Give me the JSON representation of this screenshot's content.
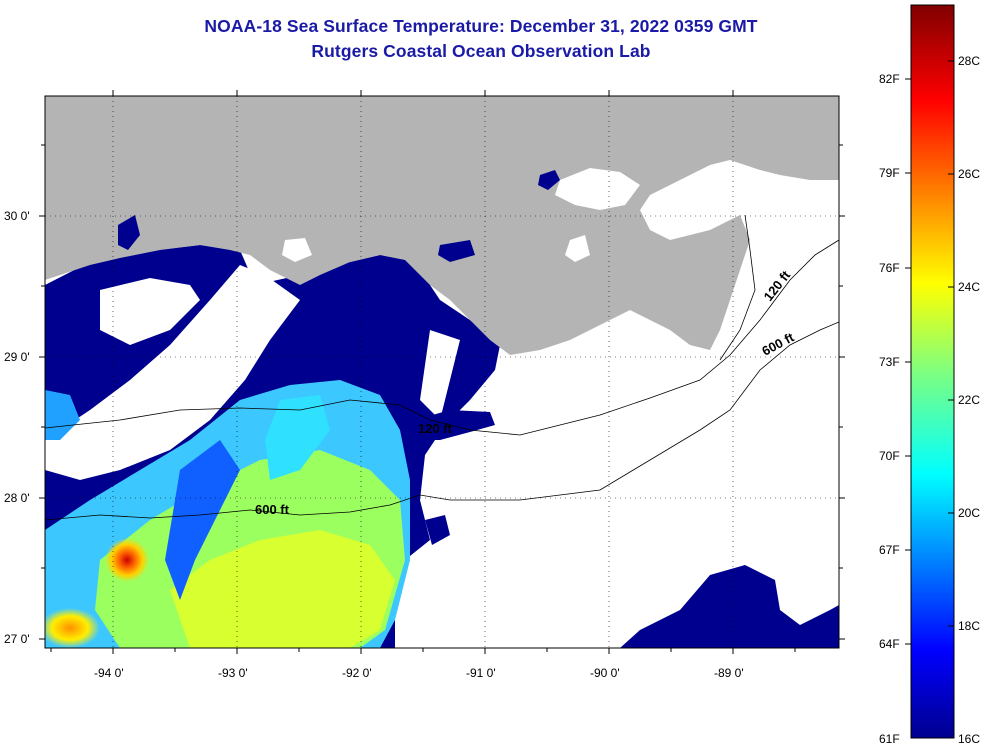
{
  "header": {
    "title": "NOAA-18 Sea Surface Temperature:  December 31, 2022 0359 GMT",
    "subtitle": "Rutgers Coastal Ocean Observation Lab"
  },
  "map": {
    "lat_labels": [
      "30 0'",
      "29 0'",
      "28 0'",
      "27 0'"
    ],
    "lon_labels": [
      "-94 0'",
      "-93 0'",
      "-92 0'",
      "-91 0'",
      "-90 0'",
      "-89 0'"
    ],
    "contour_labels": [
      "120 ft",
      "600 ft",
      "120 ft",
      "600 ft"
    ]
  },
  "colorbar": {
    "fahrenheit_labels": [
      "82F",
      "79F",
      "76F",
      "73F",
      "70F",
      "67F",
      "64F",
      "61F"
    ],
    "celsius_labels": [
      "28C",
      "26C",
      "24C",
      "22C",
      "20C",
      "18C",
      "16C"
    ],
    "range_c": [
      16,
      29.5
    ],
    "range_f": [
      61,
      85
    ]
  },
  "colors": {
    "title": "#1a1aa6",
    "land": "#b4b4b4",
    "cloud": "#ffffff",
    "cold": "#00008f",
    "warm": "#800000"
  }
}
